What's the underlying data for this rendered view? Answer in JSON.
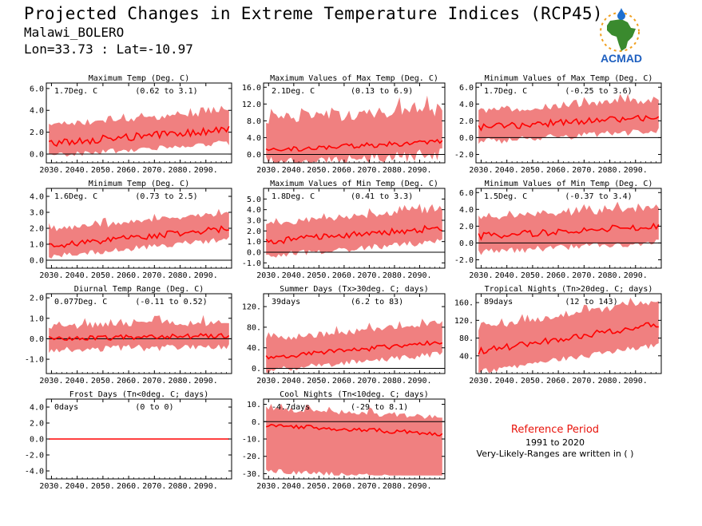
{
  "header": {
    "title": "Projected Changes in Extreme Temperature Indices (RCP45)",
    "location": "Malawi_BOLERO",
    "coords": "Lon=33.73 : Lat=-10.97"
  },
  "logo": {
    "text": "ACMAD",
    "colors": {
      "africa": "#3a8a2e",
      "drop": "#1e6fd0",
      "sun": "#f0a020",
      "text": "#1e5fbf"
    }
  },
  "reference": {
    "title": "Reference Period",
    "years": "1991 to 2020",
    "note": "Very-Likely-Ranges are written in ( )"
  },
  "style": {
    "band_color": "#f08080",
    "line_color": "#ff0000",
    "zero_color": "#000000"
  },
  "chart_data": [
    {
      "type": "area",
      "title": "Maximum Temp (Deg. C)",
      "value_label": "1.7Deg. C",
      "range_label": "(0.62 to 3.1)",
      "xlim": [
        2028,
        2100
      ],
      "xticks": [
        2030,
        2040,
        2050,
        2060,
        2070,
        2080,
        2090
      ],
      "ylim": [
        -0.8,
        6.5
      ],
      "yticks": [
        0,
        2,
        4,
        6
      ],
      "ytick_labels": [
        "0.0",
        "2.0",
        "4.0",
        "6.0"
      ],
      "start": 1.0,
      "end": 2.2,
      "lo_off": -0.9,
      "hi_off": 1.4,
      "noise": 0.35,
      "band_noise": 0.5
    },
    {
      "type": "area",
      "title": "Maximum Values of Max Temp (Deg. C)",
      "value_label": "2.1Deg. C",
      "range_label": "(0.13 to 6.9)",
      "xlim": [
        2028,
        2100
      ],
      "xticks": [
        2030,
        2040,
        2050,
        2060,
        2070,
        2080,
        2090
      ],
      "ylim": [
        -2,
        17
      ],
      "yticks": [
        0,
        4,
        8,
        12,
        16
      ],
      "ytick_labels": [
        "0.0",
        "4.0",
        "8.0",
        "12.0",
        "16.0"
      ],
      "start": 1.0,
      "end": 3.0,
      "lo_off": -1.5,
      "hi_off": 6.0,
      "noise": 0.6,
      "band_noise": 3.0
    },
    {
      "type": "area",
      "title": "Minimum Values of Max Temp (Deg. C)",
      "value_label": "1.7Deg. C",
      "range_label": "(-0.25 to 3.6)",
      "xlim": [
        2028,
        2100
      ],
      "xticks": [
        2030,
        2040,
        2050,
        2060,
        2070,
        2080,
        2090
      ],
      "ylim": [
        -3,
        6.5
      ],
      "yticks": [
        -2,
        0,
        2,
        4,
        6
      ],
      "ytick_labels": [
        "-2.0",
        "0.0",
        "2.0",
        "4.0",
        "6.0"
      ],
      "start": 1.2,
      "end": 2.5,
      "lo_off": -1.3,
      "hi_off": 1.6,
      "noise": 0.4,
      "band_noise": 0.8
    },
    {
      "type": "area",
      "title": "Minimum Temp (Deg. C)",
      "value_label": "1.6Deg. C",
      "range_label": "(0.73 to 2.5)",
      "xlim": [
        2028,
        2100
      ],
      "xticks": [
        2030,
        2040,
        2050,
        2060,
        2070,
        2080,
        2090
      ],
      "ylim": [
        -0.5,
        4.5
      ],
      "yticks": [
        0,
        1,
        2,
        3,
        4
      ],
      "ytick_labels": [
        "0.0",
        "1.0",
        "2.0",
        "3.0",
        "4.0"
      ],
      "start": 0.9,
      "end": 2.0,
      "lo_off": -0.5,
      "hi_off": 0.8,
      "noise": 0.2,
      "band_noise": 0.35
    },
    {
      "type": "area",
      "title": "Maximum Values of Min Temp (Deg. C)",
      "value_label": "1.8Deg. C",
      "range_label": "(0.41 to 3.3)",
      "xlim": [
        2028,
        2100
      ],
      "xticks": [
        2030,
        2040,
        2050,
        2060,
        2070,
        2080,
        2090
      ],
      "ylim": [
        -1.5,
        6
      ],
      "yticks": [
        -1,
        0,
        1,
        2,
        3,
        4,
        5
      ],
      "ytick_labels": [
        "-1.0",
        "0.0",
        "1.0",
        "2.0",
        "3.0",
        "4.0",
        "5.0"
      ],
      "start": 1.0,
      "end": 2.3,
      "lo_off": -1.0,
      "hi_off": 1.4,
      "noise": 0.3,
      "band_noise": 0.6
    },
    {
      "type": "area",
      "title": "Minimum Values of Min Temp (Deg. C)",
      "value_label": "1.5Deg. C",
      "range_label": "(-0.37 to 3.4)",
      "xlim": [
        2028,
        2100
      ],
      "xticks": [
        2030,
        2040,
        2050,
        2060,
        2070,
        2080,
        2090
      ],
      "ylim": [
        -3,
        6.5
      ],
      "yticks": [
        -2,
        0,
        2,
        4,
        6
      ],
      "ytick_labels": [
        "-2.0",
        "0.0",
        "2.0",
        "4.0",
        "6.0"
      ],
      "start": 0.8,
      "end": 2.0,
      "lo_off": -1.5,
      "hi_off": 1.8,
      "noise": 0.4,
      "band_noise": 0.8
    },
    {
      "type": "area",
      "title": "Diurnal Temp Range (Deg. C)",
      "value_label": "0.077Deg. C",
      "range_label": "(-0.11 to 0.52)",
      "xlim": [
        2028,
        2100
      ],
      "xticks": [
        2030,
        2040,
        2050,
        2060,
        2070,
        2080,
        2090
      ],
      "ylim": [
        -1.7,
        2.2
      ],
      "yticks": [
        -1,
        0,
        1,
        2
      ],
      "ytick_labels": [
        "-1.0",
        "0.0",
        "1.0",
        "2.0"
      ],
      "start": 0.0,
      "end": 0.15,
      "lo_off": -0.35,
      "hi_off": 0.45,
      "noise": 0.12,
      "band_noise": 0.35
    },
    {
      "type": "area",
      "title": "Summer Days (Tx>30deg. C; days)",
      "value_label": "39days",
      "range_label": "(6.2 to 83)",
      "xlim": [
        2028,
        2100
      ],
      "xticks": [
        2030,
        2040,
        2050,
        2060,
        2070,
        2080,
        2090
      ],
      "ylim": [
        -10,
        145
      ],
      "yticks": [
        0,
        40,
        80,
        120
      ],
      "ytick_labels": [
        "0.",
        "40.",
        "80.",
        "120."
      ],
      "start": 20,
      "end": 52,
      "lo_off": -18,
      "hi_off": 30,
      "noise": 5,
      "band_noise": 12
    },
    {
      "type": "area",
      "title": "Tropical Nights (Tn>20deg. C; days)",
      "value_label": "89days",
      "range_label": "(12 to 143)",
      "xlim": [
        2028,
        2100
      ],
      "xticks": [
        2030,
        2040,
        2050,
        2060,
        2070,
        2080,
        2090
      ],
      "ylim": [
        0,
        180
      ],
      "yticks": [
        40,
        80,
        120,
        160
      ],
      "ytick_labels": [
        "40.",
        "80.",
        "120.",
        "160."
      ],
      "start": 50,
      "end": 112,
      "lo_off": -40,
      "hi_off": 45,
      "noise": 7,
      "band_noise": 14
    },
    {
      "type": "area",
      "title": "Frost Days (Tn<0deg. C; days)",
      "value_label": "0days",
      "range_label": "(0 to 0)",
      "xlim": [
        2028,
        2100
      ],
      "xticks": [
        2030,
        2040,
        2050,
        2060,
        2070,
        2080,
        2090
      ],
      "ylim": [
        -5,
        5
      ],
      "yticks": [
        -4,
        -2,
        0,
        2,
        4
      ],
      "ytick_labels": [
        "-4.0",
        "-2.0",
        "0.0",
        "2.0",
        "4.0"
      ],
      "start": 0,
      "end": 0,
      "lo_off": 0,
      "hi_off": 0,
      "noise": 0,
      "band_noise": 0
    },
    {
      "type": "area",
      "title": "Cool Nights (Tn<10deg. C; days)",
      "value_label": "-4.7days",
      "range_label": "(-29 to 8.1)",
      "xlim": [
        2028,
        2100
      ],
      "xticks": [
        2030,
        2040,
        2050,
        2060,
        2070,
        2080,
        2090
      ],
      "ylim": [
        -33,
        13
      ],
      "yticks": [
        -30,
        -20,
        -10,
        0,
        10
      ],
      "ytick_labels": [
        "-30.",
        "-20.",
        "-10.",
        "0.",
        "10."
      ],
      "start": -2,
      "end": -7,
      "lo_off": -25,
      "hi_off": 8,
      "noise": 1.2,
      "band_noise": 3,
      "lo_floor": -31
    }
  ]
}
